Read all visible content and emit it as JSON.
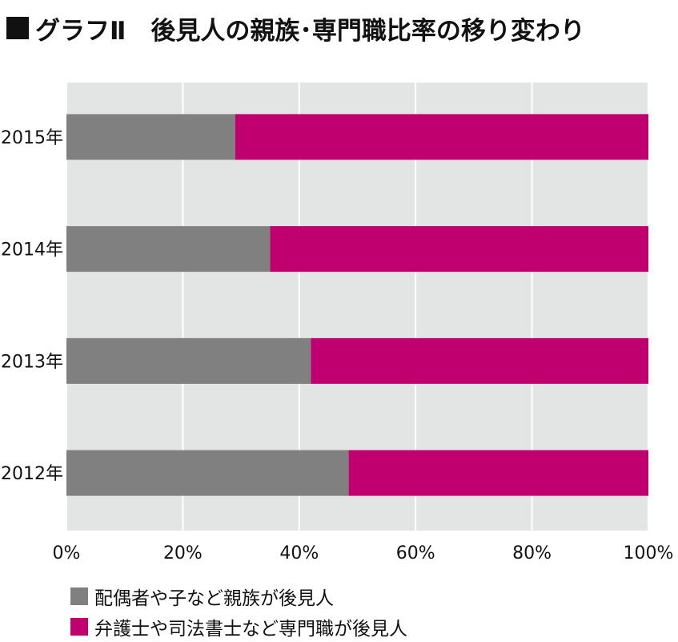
{
  "title": "グラフⅡ　後見人の親族･専門職比率の移り変わり",
  "title_icon": "black-square",
  "chart_data": {
    "type": "bar",
    "orientation": "horizontal",
    "stacked": true,
    "percent_scale": true,
    "categories": [
      "2015年",
      "2014年",
      "2013年",
      "2012年"
    ],
    "series": [
      {
        "name": "配偶者や子など親族が後見人",
        "color": "#808080",
        "values": [
          29,
          35,
          42,
          48.5
        ]
      },
      {
        "name": "弁護士や司法書士など専門職が後見人",
        "color": "#c0006f",
        "values": [
          71,
          65,
          58,
          51.5
        ]
      }
    ],
    "xlim": [
      0,
      100
    ],
    "x_ticks": [
      "0%",
      "20%",
      "40%",
      "60%",
      "80%",
      "100%"
    ],
    "grid": true,
    "plot_background": "#e3e4e4",
    "grid_color": "#ffffff",
    "legend_position": "bottom-left"
  }
}
